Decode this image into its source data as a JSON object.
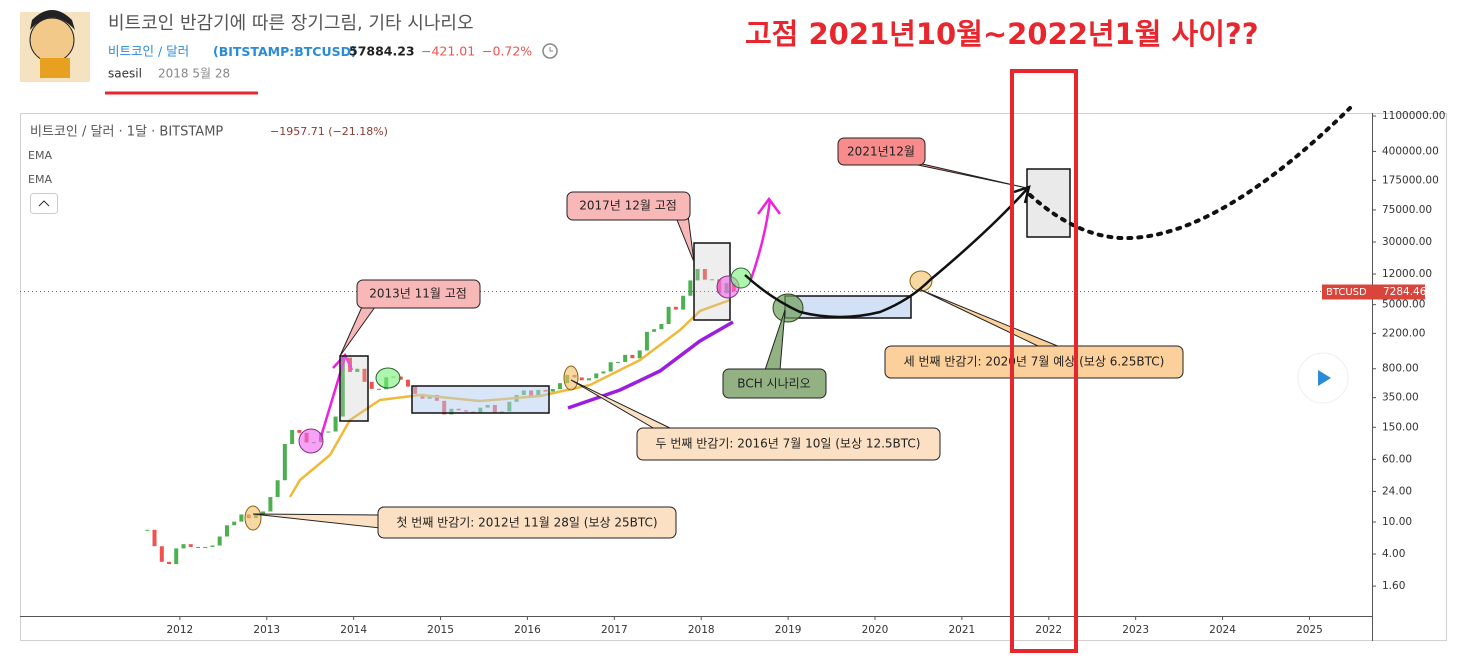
{
  "header": {
    "title": "비트코인 반감기에 따른 장기그림, 기타 시나리오",
    "symbol": "비트코인 / 달러",
    "ticker": "BITSTAMP:BTCUSD",
    "price": "57884.23",
    "change": "−421.01",
    "change_pct": "−0.72%",
    "author": "saesil",
    "date": "2018 5월 28"
  },
  "headline": "고점 2021년10월~2022년1월 사이??",
  "chart_data": {
    "type": "candlestick",
    "legend": {
      "title": "비트코인 / 달러 · 1달 · BITSTAMP",
      "change": "−1957.71 (−21.18%)",
      "indicators": [
        "EMA",
        "EMA"
      ]
    },
    "x": [
      2011.625,
      2011.708,
      2011.792,
      2011.875,
      2011.958,
      2012.042,
      2012.125,
      2012.208,
      2012.292,
      2012.375,
      2012.458,
      2012.542,
      2012.625,
      2012.708,
      2012.792,
      2012.875,
      2012.958,
      2013.042,
      2013.125,
      2013.208,
      2013.292,
      2013.375,
      2013.458,
      2013.542,
      2013.625,
      2013.708,
      2013.792,
      2013.875,
      2013.958,
      2014.042,
      2014.125,
      2014.208,
      2014.292,
      2014.375,
      2014.458,
      2014.542,
      2014.625,
      2014.708,
      2014.792,
      2014.875,
      2014.958,
      2015.042,
      2015.125,
      2015.208,
      2015.292,
      2015.375,
      2015.458,
      2015.542,
      2015.625,
      2015.708,
      2015.792,
      2015.875,
      2015.958,
      2016.042,
      2016.125,
      2016.208,
      2016.292,
      2016.375,
      2016.458,
      2016.542,
      2016.625,
      2016.708,
      2016.792,
      2016.875,
      2016.958,
      2017.042,
      2017.125,
      2017.208,
      2017.292,
      2017.375,
      2017.458,
      2017.542,
      2017.625,
      2017.708,
      2017.792,
      2017.875,
      2017.958,
      2018.042,
      2018.125,
      2018.208,
      2018.292,
      2018.375
    ],
    "values": [
      8,
      5,
      3.2,
      3,
      4.7,
      5.3,
      4.9,
      4.8,
      4.9,
      5.1,
      6.6,
      9.1,
      10.1,
      12.4,
      11.2,
      12.4,
      13.5,
      20.4,
      33,
      93,
      139,
      128,
      97,
      98,
      129,
      133,
      204,
      1100,
      730,
      800,
      550,
      450,
      445,
      627,
      640,
      585,
      480,
      390,
      340,
      378,
      320,
      217,
      255,
      244,
      235,
      230,
      263,
      284,
      230,
      236,
      311,
      377,
      430,
      368,
      437,
      416,
      448,
      530,
      670,
      624,
      575,
      609,
      700,
      740,
      963,
      970,
      1190,
      1080,
      1350,
      2300,
      2480,
      2875,
      4700,
      4340,
      6450,
      10000,
      13860,
      10220,
      10330,
      6925,
      9240,
      7284.46
    ],
    "up_color": "#4caf50",
    "down_color": "#ef5350",
    "xlim": [
      2010.16,
      2025.72
    ],
    "xticks": [
      2012,
      2013,
      2014,
      2015,
      2016,
      2017,
      2018,
      2019,
      2020,
      2021,
      2022,
      2023,
      2024,
      2025
    ],
    "ylim": [
      0.68,
      1200000
    ],
    "log_scale": true,
    "grid": false,
    "yticks": [
      {
        "value": 1100000,
        "label": "1100000.00"
      },
      {
        "value": 400000,
        "label": "400000.00"
      },
      {
        "value": 175000,
        "label": "175000.00"
      },
      {
        "value": 75000,
        "label": "75000.00"
      },
      {
        "value": 30000,
        "label": "30000.00"
      },
      {
        "value": 12000,
        "label": "12000.00"
      },
      {
        "value": 5000,
        "label": "5000.00"
      },
      {
        "value": 2200,
        "label": "2200.00"
      },
      {
        "value": 800,
        "label": "800.00"
      },
      {
        "value": 350,
        "label": "350.00"
      },
      {
        "value": 150,
        "label": "150.00"
      },
      {
        "value": 60,
        "label": "60.00"
      },
      {
        "value": 24,
        "label": "24.00"
      },
      {
        "value": 10,
        "label": "10.00"
      },
      {
        "value": 4,
        "label": "4.00"
      },
      {
        "value": 1.6,
        "label": "1.60"
      }
    ],
    "last_price": {
      "name": "BTCUSD",
      "value": 7284.46,
      "label": "7284.46"
    },
    "annotations": [
      "2013년 11월 고점",
      "2017년 12월 고점",
      "2021년12월",
      "BCH 시나리오",
      "세 번째 반감기: 2020년 7월 예상 (보상 6.25BTC)",
      "두 번째 반감기: 2016년 7월 10일 (보상 12.5BTC)",
      "첫 번째 반감기: 2012년 11월 28일 (보상 25BTC)"
    ]
  }
}
